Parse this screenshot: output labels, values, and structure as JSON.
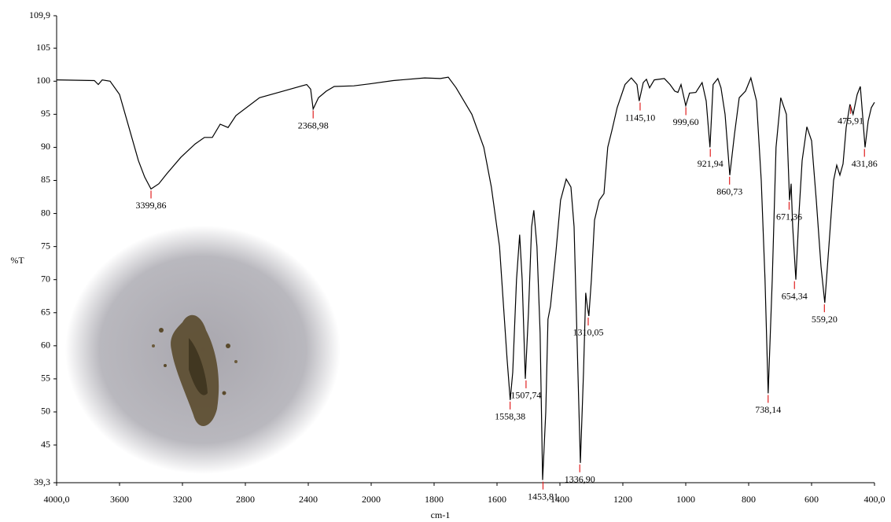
{
  "chart_data": {
    "type": "line",
    "x_label": "cm-1",
    "y_label": "%T",
    "x": [
      4000,
      3760,
      3735,
      3710,
      3660,
      3600,
      3540,
      3480,
      3440,
      3400,
      3350,
      3300,
      3210,
      3120,
      3060,
      3010,
      2960,
      2910,
      2860,
      2710,
      2560,
      2410,
      2385,
      2369,
      2335,
      2285,
      2235,
      2110,
      2010,
      1930,
      1830,
      1780,
      1755,
      1730,
      1680,
      1642,
      1618,
      1592,
      1568,
      1558,
      1550,
      1538,
      1528,
      1520,
      1510,
      1500,
      1490,
      1483,
      1473,
      1463,
      1455,
      1445,
      1438,
      1430,
      1413,
      1398,
      1380,
      1365,
      1355,
      1345,
      1335,
      1325,
      1318,
      1313,
      1308,
      1300,
      1290,
      1275,
      1260,
      1248,
      1235,
      1218,
      1193,
      1173,
      1155,
      1148,
      1135,
      1125,
      1115,
      1100,
      1068,
      1050,
      1035,
      1025,
      1015,
      1000,
      988,
      968,
      948,
      935,
      923,
      913,
      898,
      888,
      875,
      860,
      845,
      830,
      810,
      793,
      775,
      760,
      748,
      738,
      725,
      713,
      698,
      680,
      670,
      665,
      660,
      650,
      640,
      630,
      615,
      600,
      585,
      570,
      558,
      545,
      530,
      520,
      510,
      500,
      490,
      478,
      468,
      455,
      445,
      438,
      430,
      420,
      410,
      400
    ],
    "values": [
      100.2,
      100.1,
      99.5,
      100.2,
      100,
      98,
      93,
      88,
      85.5,
      83.7,
      84.5,
      86,
      88.5,
      90.5,
      91.5,
      91.5,
      93.5,
      93,
      94.8,
      97.5,
      98.5,
      99.5,
      98.8,
      95.8,
      97.5,
      98.5,
      99.2,
      99.3,
      99.6,
      100.1,
      100.5,
      100.4,
      100.6,
      99,
      95,
      90,
      84,
      75,
      58,
      51.8,
      56,
      70,
      76.8,
      70,
      55,
      65,
      78,
      80.5,
      75,
      62,
      39.7,
      50,
      64,
      66,
      74,
      82,
      85.2,
      84,
      78,
      60,
      42.3,
      56,
      68,
      66,
      64.5,
      70,
      79,
      82,
      83,
      90,
      92.5,
      96,
      99.5,
      100.5,
      99.5,
      97,
      99.8,
      100.3,
      99,
      100.2,
      100.4,
      99.5,
      98.5,
      98.3,
      99.5,
      96.3,
      98.2,
      98.3,
      99.8,
      97,
      90,
      99.5,
      100.4,
      99,
      95,
      85.8,
      92,
      97.5,
      98.5,
      100.5,
      97,
      85,
      70,
      52.8,
      70,
      90,
      97.5,
      95,
      82,
      84.5,
      78,
      70,
      80,
      88,
      93.1,
      91,
      82,
      72,
      66.5,
      75,
      85,
      87.3,
      85.8,
      87.5,
      93,
      96.5,
      95,
      98,
      99.2,
      95,
      90,
      94,
      96,
      96.8
    ],
    "color": "#000000",
    "annotation_color": "#e02020",
    "annotations": [
      {
        "x": 3399.86,
        "y": 83.7,
        "label": "3399,86"
      },
      {
        "x": 2368.98,
        "y": 95.8,
        "label": "2368,98"
      },
      {
        "x": 1558.38,
        "y": 51.8,
        "label": "1558,38"
      },
      {
        "x": 1507.74,
        "y": 55,
        "label": "1507,74"
      },
      {
        "x": 1453.81,
        "y": 39.7,
        "label": "1453,81"
      },
      {
        "x": 1336.9,
        "y": 42.3,
        "label": "1336,90"
      },
      {
        "x": 1310.05,
        "y": 64.5,
        "label": "1310,05"
      },
      {
        "x": 1145.1,
        "y": 97,
        "label": "1145,10"
      },
      {
        "x": 999.6,
        "y": 96.3,
        "label": "999,60"
      },
      {
        "x": 921.94,
        "y": 90,
        "label": "921,94"
      },
      {
        "x": 860.73,
        "y": 85.8,
        "label": "860,73"
      },
      {
        "x": 738.14,
        "y": 52.8,
        "label": "738,14"
      },
      {
        "x": 671.36,
        "y": 82,
        "label": "671,36"
      },
      {
        "x": 654.34,
        "y": 70,
        "label": "654,34"
      },
      {
        "x": 559.2,
        "y": 66.5,
        "label": "559,20"
      },
      {
        "x": 475.91,
        "y": 96.5,
        "label": "475,91"
      },
      {
        "x": 431.86,
        "y": 90,
        "label": "431,86"
      }
    ],
    "xlim": [
      4000,
      400
    ],
    "xticks": [
      {
        "value": 4000,
        "label": "4000,0"
      },
      3600,
      3200,
      2800,
      2400,
      2000,
      1800,
      1600,
      1400,
      1200,
      1000,
      800,
      600,
      {
        "value": 400,
        "label": "400,0"
      }
    ],
    "ylim": [
      39.3,
      109.9
    ],
    "yticks": [
      {
        "value": 39.3,
        "label": "39,3"
      },
      45,
      50,
      55,
      60,
      65,
      70,
      75,
      80,
      85,
      90,
      95,
      100,
      105,
      {
        "value": 109.9,
        "label": "109,9"
      }
    ],
    "grid": false
  }
}
